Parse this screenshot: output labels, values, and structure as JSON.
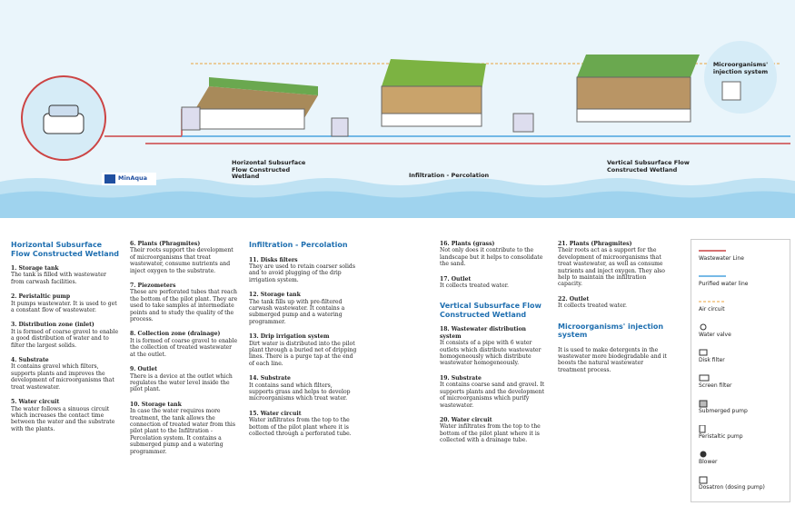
{
  "illustration": {
    "logo": "MinAqua",
    "labels": [
      "Horizontal Subsurface Flow Constructed Wetland",
      "Infiltration - Percolation",
      "Vertical Subsurface Flow Constructed Wetland",
      "Microorganisms' injection system"
    ]
  },
  "sections": [
    {
      "heading": "Horizontal Subsurface Flow Constructed Wetland",
      "items": [
        {
          "title": "1. Storage tank",
          "text": "The tank is filled with wastewater from carwash facilities."
        },
        {
          "title": "2. Peristaltic pump",
          "text": "It pumps wastewater. It is used to get a constant flow of wastewater."
        },
        {
          "title": "3. Distribution zone (inlet)",
          "text": "It is formed of coarse gravel to enable a good distribution of water and to filter the largest solids."
        },
        {
          "title": "4. Substrate",
          "text": "It contains gravel which filters, supports plants and improves the development of microorganisms that treat wastewater."
        },
        {
          "title": "5. Water circuit",
          "text": "The water follows a sinuous circuit which increases the contact time between the water and the substrate with the plants."
        },
        {
          "title": "6. Plants (Phragmites)",
          "text": "Their roots support the development of microorganisms that treat wastewater, consume nutrients and inject oxygen to the substrate."
        },
        {
          "title": "7. Piezometers",
          "text": "These are perforated tubes that reach the bottom of the pilot plant. They are used to take samples at intermediate points and to study the quality of the process."
        },
        {
          "title": "8. Collection zone (drainage)",
          "text": "It is formed of coarse gravel to enable the collection of treated wastewater at the outlet."
        },
        {
          "title": "9. Outlet",
          "text": "There is a device at the outlet which regulates the water level inside the pilot plant."
        },
        {
          "title": "10. Storage tank",
          "text": "In case the water requires more treatment, the tank allows the connection of treated water from this pilot plant to the Infiltration - Percolation system. It contains a submerged pump and a watering programmer."
        }
      ]
    },
    {
      "heading": "Infiltration - Percolation",
      "items": [
        {
          "title": "11. Disks filters",
          "text": "They are used to retain coarser solids and to avoid plugging of the drip irrigation system."
        },
        {
          "title": "12. Storage tank",
          "text": "The tank fills up with pre-filtered carwash wastewater. It contains a submerged pump and a watering programmer."
        },
        {
          "title": "13. Drip irrigation system",
          "text": "Dirt water is distributed into the pilot plant through a buried net of dripping lines. There is a purge tap at the end of each line."
        },
        {
          "title": "14. Substrate",
          "text": "It contains sand which filters, supports grass and helps to develop microorganisms which treat water."
        },
        {
          "title": "15. Water circuit",
          "text": "Water infiltrates from the top to the bottom of the pilot plant where it is collected through a perforated tube."
        },
        {
          "title": "16. Plants (grass)",
          "text": "Not only does it contribute to the landscape but it helps to consolidate the sand."
        },
        {
          "title": "17. Outlet",
          "text": "It collects treated water."
        }
      ]
    },
    {
      "heading": "Vertical Subsurface Flow Constructed Wetland",
      "items": [
        {
          "title": "18. Wastewater distribution system",
          "text": "It consists of a pipe with 6 water outlets which distribute wastewater homogeneously which distribute wastewater homogeneously."
        },
        {
          "title": "19. Substrate",
          "text": "It contains coarse sand and gravel. It supports plants and the development of microorganisms which purify wastewater."
        },
        {
          "title": "20. Water circuit",
          "text": "Water infiltrates from the top to the bottom of the pilot plant where it is collected with a drainage tube."
        },
        {
          "title": "21. Plants (Phragmites)",
          "text": "Their roots act as a support for the development of microorganisms that treat wastewater, as well as consume nutrients and inject oxygen. They also help to maintain the infiltration capacity."
        },
        {
          "title": "22. Outlet",
          "text": "It collects treated water."
        }
      ]
    },
    {
      "heading": "Microorganisms' injection system",
      "items": [
        {
          "title": "",
          "text": "It is used to make detergents in the wastewater more biodegradable and it boosts the natural wastewater treatment process."
        }
      ]
    }
  ],
  "legend": [
    "Wastewater Line",
    "Purified water line",
    "Air circuit",
    "Water valve",
    "Disk filter",
    "Screen filter",
    "Submerged pump",
    "Peristaltic pump",
    "Blower",
    "Dosatron (dosing pump)"
  ]
}
